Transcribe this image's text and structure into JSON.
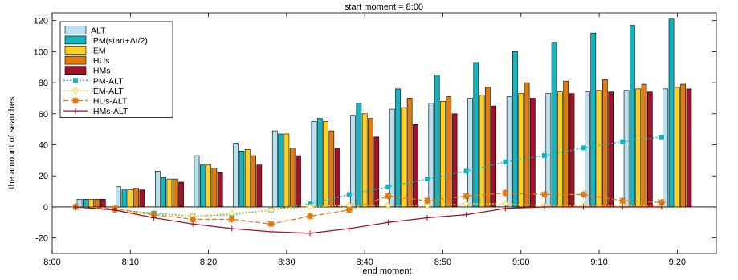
{
  "chart_data": {
    "type": "bar",
    "title": "start moment = 8:00",
    "xlabel": "end moment",
    "ylabel": "the amount of searches",
    "ylim": [
      -30,
      125
    ],
    "yticks": [
      -20,
      0,
      20,
      40,
      60,
      80,
      100,
      120
    ],
    "xlim_minutes": [
      0,
      85
    ],
    "xtick_labels": [
      "8:00",
      "8:10",
      "8:20",
      "8:30",
      "8:40",
      "8:50",
      "9:00",
      "9:10",
      "9:20"
    ],
    "grid": false,
    "legend_position": "top-left",
    "x": [
      "8:05",
      "8:10",
      "8:15",
      "8:20",
      "8:25",
      "8:30",
      "8:35",
      "8:40",
      "8:45",
      "8:50",
      "8:55",
      "9:00",
      "9:05",
      "9:10",
      "9:15",
      "9:20"
    ],
    "series": [
      {
        "name": "ALT",
        "kind": "bar",
        "color": "#b8e2f2",
        "values": [
          5,
          13,
          23,
          33,
          41,
          49,
          55,
          59,
          63,
          67,
          70,
          71,
          73,
          74,
          75,
          76
        ]
      },
      {
        "name": "IPM(start+Δt/2)",
        "kind": "bar",
        "color": "#13b5bf",
        "values": [
          5,
          11,
          19,
          27,
          36,
          47,
          57,
          67,
          76,
          85,
          93,
          100,
          106,
          112,
          117,
          121
        ]
      },
      {
        "name": "IEM",
        "kind": "bar",
        "color": "#ffd21e",
        "values": [
          5,
          11,
          18,
          27,
          37,
          47,
          55,
          60,
          64,
          68,
          72,
          73,
          74,
          75,
          76,
          77
        ]
      },
      {
        "name": "IHUs",
        "kind": "bar",
        "color": "#e07b10",
        "values": [
          5,
          12,
          18,
          25,
          33,
          38,
          49,
          57,
          70,
          71,
          77,
          80,
          81,
          82,
          79,
          79
        ]
      },
      {
        "name": "IHMs",
        "kind": "bar",
        "color": "#a01228",
        "values": [
          5,
          11,
          16,
          22,
          27,
          33,
          38,
          45,
          53,
          60,
          65,
          70,
          73,
          74,
          74,
          76
        ]
      },
      {
        "name": "IPM-ALT",
        "kind": "line",
        "color": "#13b5bf",
        "dash": "2,2",
        "marker": "square",
        "values": [
          0,
          -2,
          -4,
          -6,
          -5,
          -2,
          2,
          8,
          13,
          18,
          23,
          29,
          33,
          38,
          42,
          45
        ]
      },
      {
        "name": "IEM-ALT",
        "kind": "line",
        "color": "#ffd21e",
        "dash": "2,2",
        "marker": "diamond",
        "values": [
          0,
          -2,
          -5,
          -6,
          -4,
          -2,
          0,
          1,
          1,
          1,
          2,
          2,
          1,
          1,
          1,
          1
        ]
      },
      {
        "name": "IHUs-ALT",
        "kind": "line",
        "color": "#e07b10",
        "dash": "6,3",
        "marker": "star",
        "values": [
          0,
          -1,
          -5,
          -8,
          -8,
          -11,
          -6,
          -2,
          7,
          4,
          7,
          9,
          8,
          8,
          4,
          3
        ]
      },
      {
        "name": "IHMs-ALT",
        "kind": "line",
        "color": "#a01228",
        "dash": "",
        "marker": "plus",
        "values": [
          0,
          -2,
          -7,
          -11,
          -14,
          -16,
          -17,
          -14,
          -10,
          -7,
          -5,
          -1,
          0,
          0,
          0,
          0
        ]
      }
    ]
  }
}
